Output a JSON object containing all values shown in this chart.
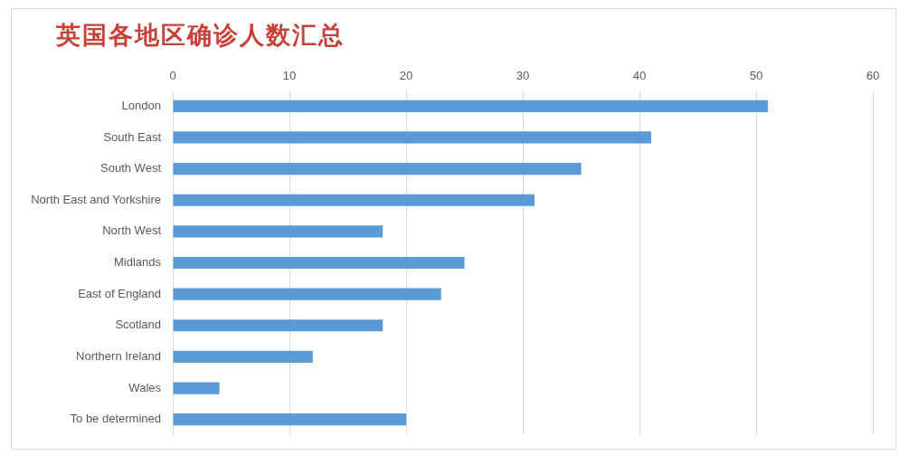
{
  "chart_data": {
    "type": "bar",
    "title": "英国各地区确诊人数汇总",
    "orientation": "horizontal",
    "categories": [
      "London",
      "South East",
      "South West",
      "North East and Yorkshire",
      "North West",
      "Midlands",
      "East of England",
      "Scotland",
      "Northern Ireland",
      "Wales",
      "To be determined"
    ],
    "values": [
      51,
      41,
      35,
      31,
      18,
      25,
      23,
      18,
      12,
      4,
      20
    ],
    "color": "#5b9bd5",
    "xlim": [
      0,
      60
    ],
    "xticks": [
      0,
      10,
      20,
      30,
      40,
      50,
      60
    ],
    "grid": "x"
  }
}
